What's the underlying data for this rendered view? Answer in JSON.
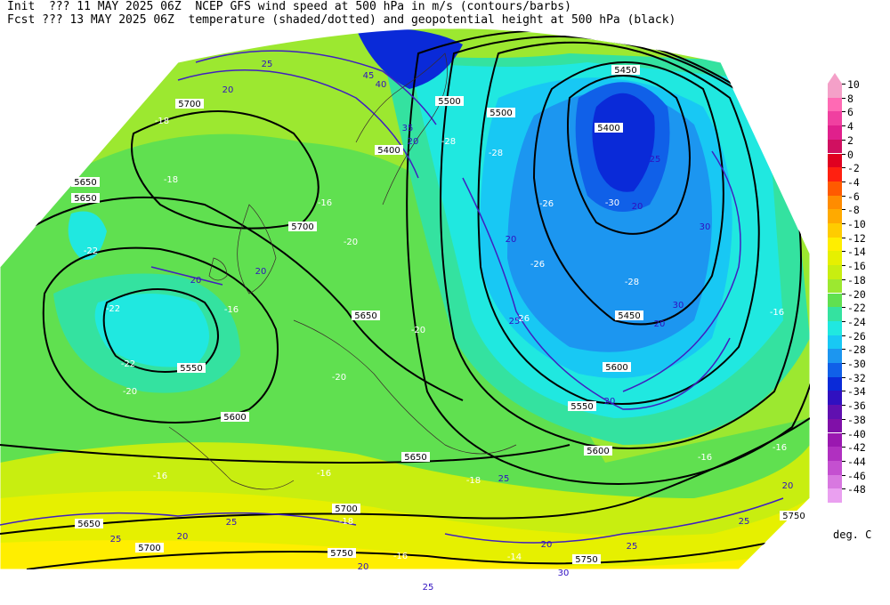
{
  "header": {
    "line1": "Init  ??? 11 MAY 2025 06Z  NCEP GFS wind speed at 500 hPa in m/s (contours/barbs)",
    "line2": "Fcst ??? 13 MAY 2025 06Z  temperature (shaded/dotted) and geopotential height at 500 hPa (black)"
  },
  "legend": {
    "unit": "deg. C",
    "levels": [
      {
        "label": "10",
        "color": "#f4a0c8"
      },
      {
        "label": "8",
        "color": "#ff6ab4"
      },
      {
        "label": "6",
        "color": "#f040a0"
      },
      {
        "label": "4",
        "color": "#e0208c"
      },
      {
        "label": "2",
        "color": "#d01060"
      },
      {
        "label": "0",
        "color": "#e00020"
      },
      {
        "label": "-2",
        "color": "#ff2010"
      },
      {
        "label": "-4",
        "color": "#ff5a00"
      },
      {
        "label": "-6",
        "color": "#ff8c00"
      },
      {
        "label": "-8",
        "color": "#ffaa00"
      },
      {
        "label": "-10",
        "color": "#ffcc00"
      },
      {
        "label": "-12",
        "color": "#ffee00"
      },
      {
        "label": "-14",
        "color": "#e6f000"
      },
      {
        "label": "-16",
        "color": "#c8ee10"
      },
      {
        "label": "-18",
        "color": "#9ce830"
      },
      {
        "label": "-20",
        "color": "#60e050"
      },
      {
        "label": "-22",
        "color": "#34e2a0"
      },
      {
        "label": "-24",
        "color": "#20e8e0"
      },
      {
        "label": "-26",
        "color": "#18c8f4"
      },
      {
        "label": "-28",
        "color": "#1c96f0"
      },
      {
        "label": "-30",
        "color": "#1060e8"
      },
      {
        "label": "-32",
        "color": "#0a2ad8"
      },
      {
        "label": "-34",
        "color": "#3010c0"
      },
      {
        "label": "-36",
        "color": "#6010b0"
      },
      {
        "label": "-38",
        "color": "#8010a8"
      },
      {
        "label": "-40",
        "color": "#9a18b0"
      },
      {
        "label": "-42",
        "color": "#b030c0"
      },
      {
        "label": "-44",
        "color": "#c450d0"
      },
      {
        "label": "-46",
        "color": "#d878e0"
      },
      {
        "label": "-48",
        "color": "#eaa0f0"
      }
    ]
  },
  "map_labels": {
    "heights": [
      "5700",
      "5650",
      "5650",
      "5600",
      "5550",
      "5500",
      "5500",
      "5450",
      "5450",
      "5400",
      "5400",
      "5550",
      "5600",
      "5650",
      "5600",
      "5650",
      "5700",
      "5700",
      "5750",
      "5750",
      "5650",
      "5700",
      "5750"
    ],
    "temperatures": [
      "-18",
      "-18",
      "-20",
      "-16",
      "-22",
      "-22",
      "-22",
      "-20",
      "-20",
      "-20",
      "-26",
      "-26",
      "-28",
      "-28",
      "-28",
      "-30",
      "-26",
      "-16",
      "-16",
      "-16",
      "-18",
      "-18",
      "-16",
      "-14",
      "-16",
      "-16",
      "-16"
    ],
    "winds": [
      "20",
      "25",
      "20",
      "25",
      "20",
      "25",
      "20",
      "25",
      "25",
      "30",
      "20",
      "20",
      "20",
      "25",
      "30",
      "35",
      "40",
      "45",
      "20",
      "25",
      "20",
      "20",
      "25",
      "25",
      "20",
      "30",
      "20"
    ]
  }
}
